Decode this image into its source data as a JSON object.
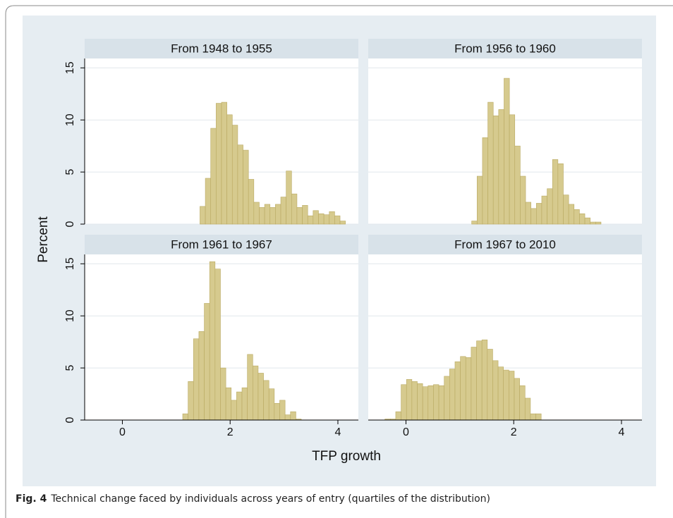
{
  "chart_data": {
    "type": "histogram",
    "xlabel": "TFP growth",
    "ylabel": "Percent",
    "xlim": [
      -0.7,
      4.38
    ],
    "ylim": [
      0,
      15.9
    ],
    "xticks": [
      0,
      2,
      4
    ],
    "yticks": [
      0,
      5,
      10,
      15
    ],
    "grid": true,
    "color": "#d6ca8e",
    "panels": [
      {
        "title": "From 1948 to 1955",
        "bins": [
          1.44,
          1.54,
          1.64,
          1.74,
          1.84,
          1.94,
          2.04,
          2.14,
          2.24,
          2.34,
          2.44,
          2.54,
          2.64,
          2.74,
          2.84,
          2.94,
          3.04,
          3.14,
          3.24,
          3.34,
          3.44,
          3.54,
          3.64,
          3.74,
          3.84,
          3.94,
          4.04,
          4.14
        ],
        "counts": [
          1.7,
          4.4,
          9.2,
          11.6,
          11.7,
          10.5,
          9.5,
          7.6,
          7.1,
          4.3,
          2.1,
          1.6,
          1.9,
          1.6,
          1.9,
          2.6,
          5.1,
          2.9,
          1.6,
          1.8,
          0.8,
          1.3,
          1.0,
          0.9,
          1.2,
          0.8,
          0.3
        ]
      },
      {
        "title": "From 1956 to 1960",
        "bins": [
          1.22,
          1.32,
          1.42,
          1.52,
          1.62,
          1.72,
          1.82,
          1.92,
          2.02,
          2.12,
          2.22,
          2.32,
          2.42,
          2.52,
          2.62,
          2.72,
          2.82,
          2.92,
          3.02,
          3.12,
          3.22,
          3.32,
          3.42,
          3.52,
          3.62
        ],
        "counts": [
          0.3,
          4.6,
          8.3,
          11.7,
          10.4,
          11.0,
          14.0,
          10.5,
          7.5,
          4.6,
          2.1,
          1.5,
          2.0,
          2.7,
          3.4,
          6.2,
          5.8,
          2.8,
          1.9,
          1.4,
          1.0,
          0.6,
          0.2,
          0.2
        ]
      },
      {
        "title": "From 1961 to 1967",
        "bins": [
          1.12,
          1.22,
          1.32,
          1.42,
          1.52,
          1.62,
          1.72,
          1.82,
          1.92,
          2.02,
          2.12,
          2.22,
          2.32,
          2.42,
          2.52,
          2.62,
          2.72,
          2.82,
          2.92,
          3.02,
          3.12,
          3.22,
          3.32
        ],
        "counts": [
          0.6,
          3.7,
          7.8,
          8.5,
          11.2,
          15.2,
          14.5,
          5.0,
          3.1,
          1.9,
          2.7,
          3.1,
          6.3,
          5.2,
          4.5,
          3.8,
          3.0,
          1.6,
          1.9,
          0.5,
          0.8,
          0.1
        ]
      },
      {
        "title": "From 1967 to 2010",
        "bins": [
          -0.39,
          -0.29,
          -0.19,
          -0.09,
          0.01,
          0.11,
          0.21,
          0.31,
          0.41,
          0.51,
          0.61,
          0.71,
          0.81,
          0.91,
          1.01,
          1.11,
          1.21,
          1.31,
          1.41,
          1.51,
          1.61,
          1.71,
          1.81,
          1.91,
          2.01,
          2.11,
          2.21,
          2.31,
          2.41,
          2.51
        ],
        "counts": [
          0.1,
          0.1,
          0.8,
          3.4,
          3.9,
          3.7,
          3.5,
          3.2,
          3.3,
          3.4,
          3.3,
          4.2,
          4.9,
          5.6,
          6.1,
          6.0,
          7.0,
          7.6,
          7.7,
          6.8,
          5.7,
          5.1,
          4.8,
          4.7,
          4.0,
          3.3,
          2.1,
          0.6,
          0.6
        ]
      }
    ]
  },
  "caption": {
    "label": "Fig. 4",
    "text": "Technical change faced by individuals across years of entry (quartiles of the distribution)"
  }
}
